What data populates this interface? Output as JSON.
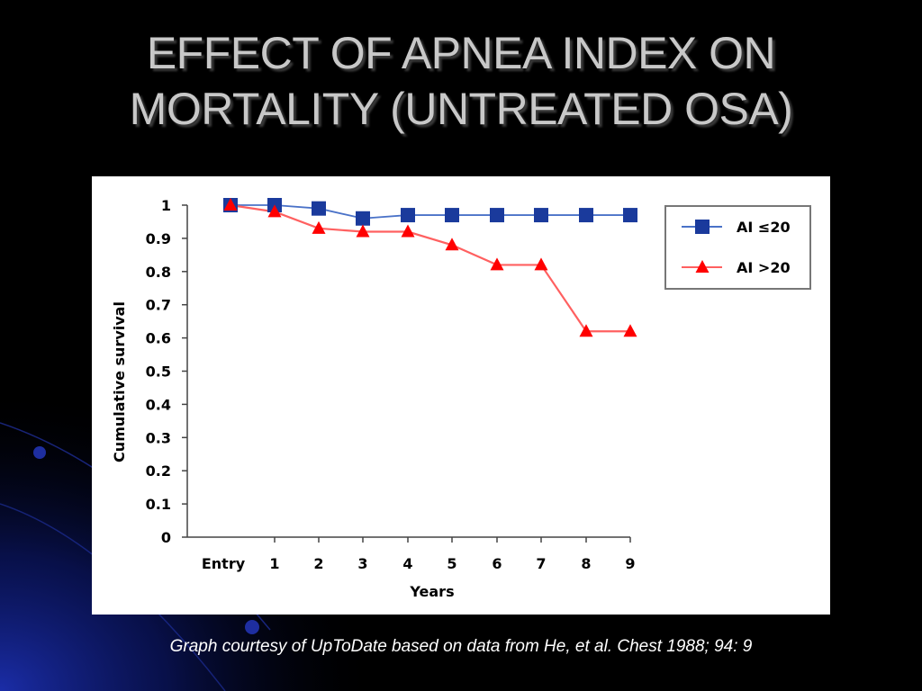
{
  "slide": {
    "title_line1": "EFFECT OF APNEA INDEX ON",
    "title_line2": "MORTALITY (UNTREATED OSA)",
    "caption": "Graph courtesy of UpToDate based on data from He, et al. Chest 1988; 94: 9"
  },
  "colors": {
    "background": "#000000",
    "series_ai_le20": "#1a3a9c",
    "series_ai_gt20": "#ff0000",
    "title_text": "#c8c8c8"
  },
  "chart_data": {
    "type": "line",
    "title": "",
    "xlabel": "Years",
    "ylabel": "Cumulative survival",
    "categories": [
      "Entry",
      "1",
      "2",
      "3",
      "4",
      "5",
      "6",
      "7",
      "8",
      "9"
    ],
    "yticks": [
      "0",
      "0.1",
      "0.2",
      "0.3",
      "0.4",
      "0.5",
      "0.6",
      "0.7",
      "0.8",
      "0.9",
      "1"
    ],
    "ylim": [
      0,
      1
    ],
    "grid": false,
    "legend_position": "right",
    "series": [
      {
        "name": "AI ≤20",
        "marker": "square",
        "values": [
          1.0,
          1.0,
          0.99,
          0.96,
          0.97,
          0.97,
          0.97,
          0.97,
          0.97,
          0.97
        ]
      },
      {
        "name": "AI >20",
        "marker": "triangle",
        "values": [
          1.0,
          0.98,
          0.93,
          0.92,
          0.92,
          0.88,
          0.82,
          0.82,
          0.62,
          0.62
        ]
      }
    ]
  }
}
